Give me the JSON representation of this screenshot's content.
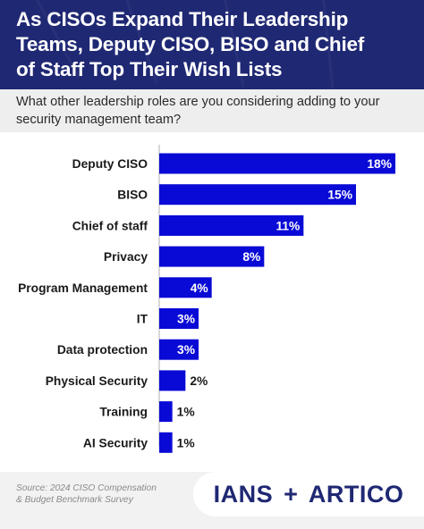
{
  "header": {
    "title_lines": [
      "As CISOs Expand Their Leadership",
      "Teams, Deputy CISO, BISO and Chief",
      "of Staff Top Their Wish Lists"
    ]
  },
  "question": {
    "lines": [
      "What other leadership roles are you considering adding to your",
      "security management team?"
    ]
  },
  "chart_data": {
    "type": "bar",
    "orientation": "horizontal",
    "categories": [
      "Deputy CISO",
      "BISO",
      "Chief of staff",
      "Privacy",
      "Program Management",
      "IT",
      "Data protection",
      "Physical Security",
      "Training",
      "AI Security"
    ],
    "values": [
      18,
      15,
      11,
      8,
      4,
      3,
      3,
      2,
      1,
      1
    ],
    "value_labels": [
      "18%",
      "15%",
      "11%",
      "8%",
      "4%",
      "3%",
      "3%",
      "2%",
      "1%",
      "1%"
    ],
    "unit": "%",
    "bar_color": "#0a0ad6",
    "grid": false,
    "legend": false
  },
  "footer": {
    "source_lines": [
      "Source: 2024 CISO Compensation",
      "& Budget Benchmark Survey"
    ],
    "logo_left": "IANS",
    "logo_plus": "+",
    "logo_right": "ARTICO"
  },
  "colors": {
    "header_bg": "#1f2873",
    "question_bg": "#eeeeee",
    "bar": "#0a0ad6",
    "footer_bg": "#f2f2f2"
  }
}
